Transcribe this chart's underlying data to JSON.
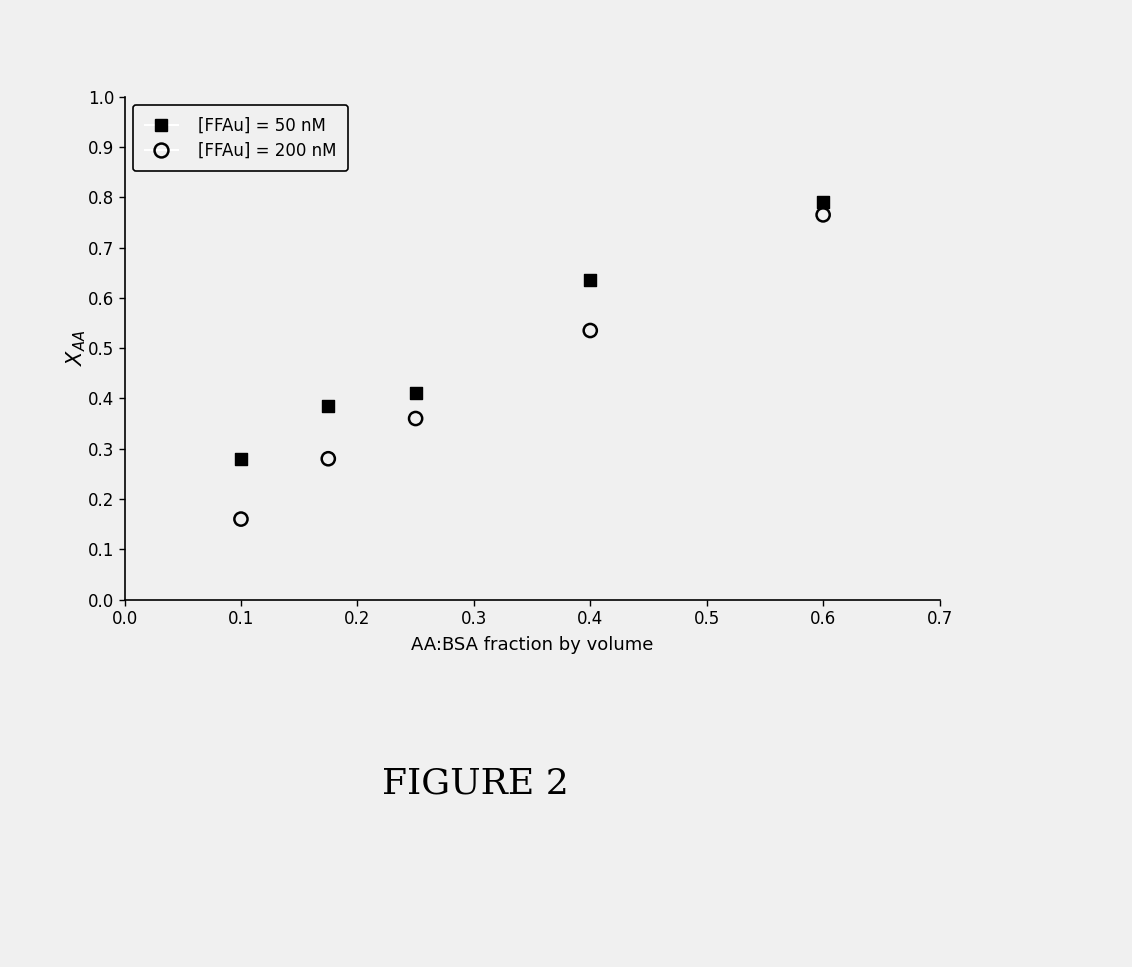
{
  "series1_label": "[FFAu] = 50 nM",
  "series2_label": "[FFAu] = 200 nM",
  "series1_x": [
    0.1,
    0.175,
    0.25,
    0.4,
    0.6
  ],
  "series1_y": [
    0.28,
    0.385,
    0.41,
    0.635,
    0.79
  ],
  "series2_x": [
    0.1,
    0.175,
    0.25,
    0.4,
    0.6
  ],
  "series2_y": [
    0.16,
    0.28,
    0.36,
    0.535,
    0.765
  ],
  "xlabel": "AA:BSA fraction by volume",
  "ylabel": "$X_{AA}$",
  "xlim": [
    0.0,
    0.7
  ],
  "ylim": [
    0.0,
    1.0
  ],
  "xticks": [
    0.0,
    0.1,
    0.2,
    0.3,
    0.4,
    0.5,
    0.6,
    0.7
  ],
  "yticks": [
    0.0,
    0.1,
    0.2,
    0.3,
    0.4,
    0.5,
    0.6,
    0.7,
    0.8,
    0.9,
    1.0
  ],
  "figure_label": "FIGURE 2",
  "background_color": "#f0f0f0",
  "plot_bg_color": "#f0f0f0",
  "marker_color": "#000000",
  "marker_size_square": 80,
  "marker_size_circle": 90,
  "xlabel_fontsize": 13,
  "ylabel_fontsize": 15,
  "tick_fontsize": 12,
  "legend_fontsize": 12,
  "figure_label_fontsize": 26
}
